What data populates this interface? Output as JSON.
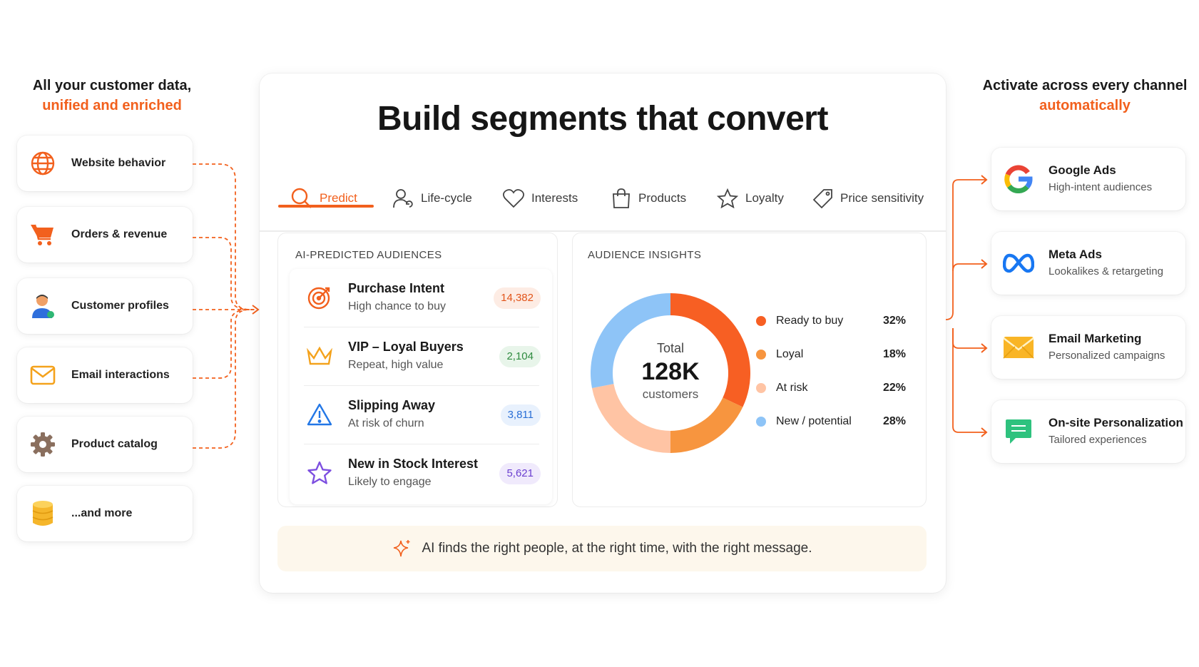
{
  "left": {
    "heading_line1": "All your customer data,",
    "heading_line2": "unified and enriched",
    "sources": [
      {
        "label": "Website behavior",
        "icon": "globe-icon"
      },
      {
        "label": "Orders & revenue",
        "icon": "cart-icon"
      },
      {
        "label": "Customer profiles",
        "icon": "person-icon"
      },
      {
        "label": "Email interactions",
        "icon": "envelope-icon"
      },
      {
        "label": "Product catalog",
        "icon": "gear-icon"
      },
      {
        "label": "...and more",
        "icon": "database-icon"
      }
    ]
  },
  "panel": {
    "title": "Build segments that convert",
    "tabs": [
      {
        "label": "Predict",
        "icon": "search-icon",
        "active": true
      },
      {
        "label": "Life-cycle",
        "icon": "user-cycle-icon"
      },
      {
        "label": "Interests",
        "icon": "heart-icon"
      },
      {
        "label": "Products",
        "icon": "bag-icon"
      },
      {
        "label": "Loyalty",
        "icon": "star-icon"
      },
      {
        "label": "Price sensitivity",
        "icon": "tag-icon"
      }
    ],
    "audiences": {
      "title": "AI-PREDICTED AUDIENCES",
      "items": [
        {
          "name": "Purchase Intent",
          "sub": "High chance to buy",
          "count": "14,382",
          "icon": "target-icon"
        },
        {
          "name": "VIP – Loyal Buyers",
          "sub": "Repeat, high value",
          "count": "2,104",
          "icon": "crown-icon"
        },
        {
          "name": "Slipping Away",
          "sub": "At risk of churn",
          "count": "3,811",
          "icon": "warning-icon"
        },
        {
          "name": "New in Stock Interest",
          "sub": "Likely to engage",
          "count": "5,621",
          "icon": "star-icon"
        }
      ]
    },
    "insights": {
      "title": "AUDIENCE INSIGHTS",
      "total_label": "Total",
      "total_value": "128K",
      "total_unit": "customers",
      "legend": [
        {
          "label": "Ready to buy",
          "pct": "32%",
          "color": "#f75f23"
        },
        {
          "label": "Loyal",
          "pct": "18%",
          "color": "#f7953f"
        },
        {
          "label": "At risk",
          "pct": "22%",
          "color": "#ffc4a4"
        },
        {
          "label": "New / potential",
          "pct": "28%",
          "color": "#8ec4f7"
        }
      ]
    },
    "footer": "AI finds the right people, at the right time, with the right message."
  },
  "right": {
    "heading_line1": "Activate across every channel",
    "heading_line2": "automatically",
    "channels": [
      {
        "title": "Google Ads",
        "sub": "High-intent audiences",
        "icon": "google-icon"
      },
      {
        "title": "Meta Ads",
        "sub": "Lookalikes & retargeting",
        "icon": "meta-icon"
      },
      {
        "title": "Email Marketing",
        "sub": "Personalized campaigns",
        "icon": "mail-icon"
      },
      {
        "title": "On-site Personalization",
        "sub": "Tailored experiences",
        "icon": "chat-icon"
      }
    ]
  },
  "chart_data": {
    "type": "pie",
    "categories": [
      "Ready to buy",
      "Loyal",
      "At risk",
      "New / potential"
    ],
    "values": [
      32,
      18,
      22,
      28
    ],
    "colors": [
      "#f75f23",
      "#f7953f",
      "#ffc4a4",
      "#8ec4f7"
    ]
  }
}
